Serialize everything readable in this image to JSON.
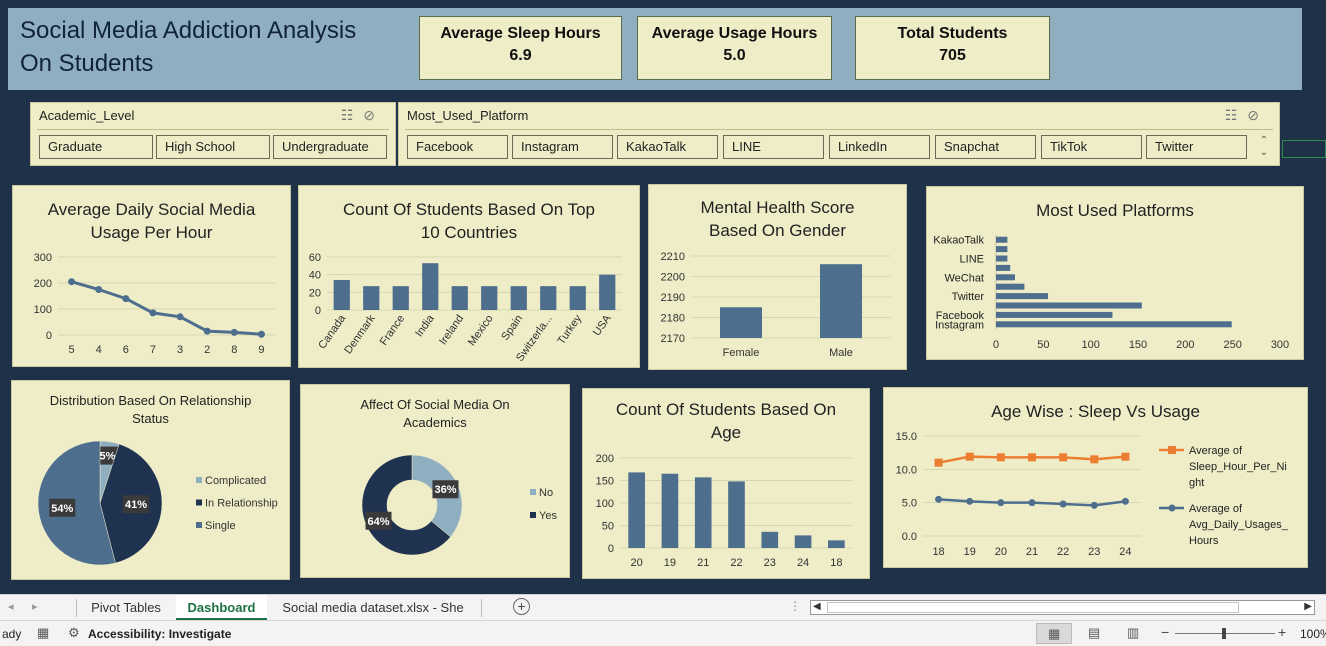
{
  "header": {
    "title": "Social Media Addiction Analysis\nOn Students",
    "kpis": [
      {
        "label": "Average Sleep Hours",
        "value": "6.9"
      },
      {
        "label": "Average Usage Hours",
        "value": "5.0"
      },
      {
        "label": "Total Students",
        "value": "705"
      }
    ]
  },
  "slicers": {
    "academic": {
      "title": "Academic_Level",
      "items": [
        "Graduate",
        "High School",
        "Undergraduate"
      ]
    },
    "platform": {
      "title": "Most_Used_Platform",
      "items": [
        "Facebook",
        "Instagram",
        "KakaoTalk",
        "LINE",
        "LinkedIn",
        "Snapchat",
        "TikTok",
        "Twitter"
      ]
    }
  },
  "charts": {
    "usage_per_hour": {
      "title": "Average Daily Social Media\nUsage Per Hour"
    },
    "countries": {
      "title": "Count Of Students Based On Top\n10 Countries"
    },
    "mental_health": {
      "title": "Mental Health Score\nBased On Gender"
    },
    "platforms": {
      "title": "Most Used Platforms"
    },
    "relationship": {
      "title": "Distribution Based On Relationship\nStatus"
    },
    "academics": {
      "title": "Affect Of Social Media On\nAcademics"
    },
    "age_count": {
      "title": "Count Of Students Based On\nAge"
    },
    "sleep_usage": {
      "title": "Age Wise : Sleep Vs Usage"
    }
  },
  "chart_data": [
    {
      "id": "usage_per_hour",
      "type": "line",
      "categories": [
        "5",
        "4",
        "6",
        "7",
        "3",
        "2",
        "8",
        "9"
      ],
      "values": [
        205,
        175,
        140,
        85,
        70,
        15,
        10,
        3
      ],
      "ylim": [
        0,
        300
      ],
      "yticks": [
        0,
        100,
        200,
        300
      ],
      "color": "#4e6e8e"
    },
    {
      "id": "countries",
      "type": "bar",
      "categories": [
        "Canada",
        "Denmark",
        "France",
        "India",
        "Ireland",
        "Mexico",
        "Spain",
        "Switzerla...",
        "Turkey",
        "USA"
      ],
      "values": [
        34,
        27,
        27,
        53,
        27,
        27,
        27,
        27,
        27,
        40
      ],
      "ylim": [
        0,
        60
      ],
      "yticks": [
        0,
        20,
        40,
        60
      ],
      "color": "#4e6e8e"
    },
    {
      "id": "mental_health",
      "type": "bar",
      "categories": [
        "Female",
        "Male"
      ],
      "values": [
        2185,
        2206
      ],
      "ylim": [
        2170,
        2210
      ],
      "yticks": [
        2170,
        2180,
        2190,
        2200,
        2210
      ],
      "color": "#4e6e8e"
    },
    {
      "id": "platforms",
      "type": "bar",
      "orientation": "horizontal",
      "categories": [
        "Instagram",
        "Facebook",
        "",
        "Twitter",
        "",
        "WeChat",
        "",
        "LINE",
        "",
        "KakaoTalk"
      ],
      "values": [
        249,
        123,
        154,
        55,
        30,
        20,
        15,
        12,
        12,
        12
      ],
      "xlim": [
        0,
        300
      ],
      "xticks": [
        0,
        50,
        100,
        150,
        200,
        250,
        300
      ],
      "color": "#4e6e8e"
    },
    {
      "id": "relationship",
      "type": "pie",
      "labels": [
        "Complicated",
        "In Relationship",
        "Single"
      ],
      "values": [
        5,
        41,
        54
      ],
      "data_labels": [
        "5%",
        "41%",
        "54%"
      ],
      "colors": [
        "#8faebf",
        "#1f3350",
        "#4e6e8e"
      ]
    },
    {
      "id": "academics",
      "type": "pie",
      "donut": true,
      "labels": [
        "No",
        "Yes"
      ],
      "values": [
        36,
        64
      ],
      "data_labels": [
        "36%",
        "64%"
      ],
      "colors": [
        "#8faebf",
        "#1f3350"
      ]
    },
    {
      "id": "age_count",
      "type": "bar",
      "categories": [
        "20",
        "19",
        "21",
        "22",
        "23",
        "24",
        "18"
      ],
      "values": [
        168,
        165,
        157,
        148,
        36,
        28,
        17
      ],
      "ylim": [
        0,
        200
      ],
      "yticks": [
        0,
        50,
        100,
        150,
        200
      ],
      "color": "#4e6e8e"
    },
    {
      "id": "sleep_usage",
      "type": "line",
      "categories": [
        "18",
        "19",
        "20",
        "21",
        "22",
        "23",
        "24"
      ],
      "ylim": [
        0,
        15
      ],
      "yticks": [
        "0.0",
        "5.0",
        "10.0",
        "15.0"
      ],
      "series": [
        {
          "name": "Average of Sleep_Hour_Per_Night",
          "values": [
            11.0,
            11.9,
            11.8,
            11.8,
            11.8,
            11.5,
            11.9
          ],
          "color": "#ed7d31"
        },
        {
          "name": "Average of Avg_Daily_Usages_Hours",
          "values": [
            5.5,
            5.2,
            5.0,
            5.0,
            4.8,
            4.6,
            5.2
          ],
          "color": "#4e6e8e"
        }
      ]
    }
  ],
  "sheet_tabs": [
    "Pivot Tables",
    "Dashboard",
    "Social media dataset.xlsx - She"
  ],
  "active_tab": "Dashboard",
  "status": {
    "ready": "ady",
    "accessibility": "Accessibility: Investigate",
    "zoom": "100%"
  }
}
